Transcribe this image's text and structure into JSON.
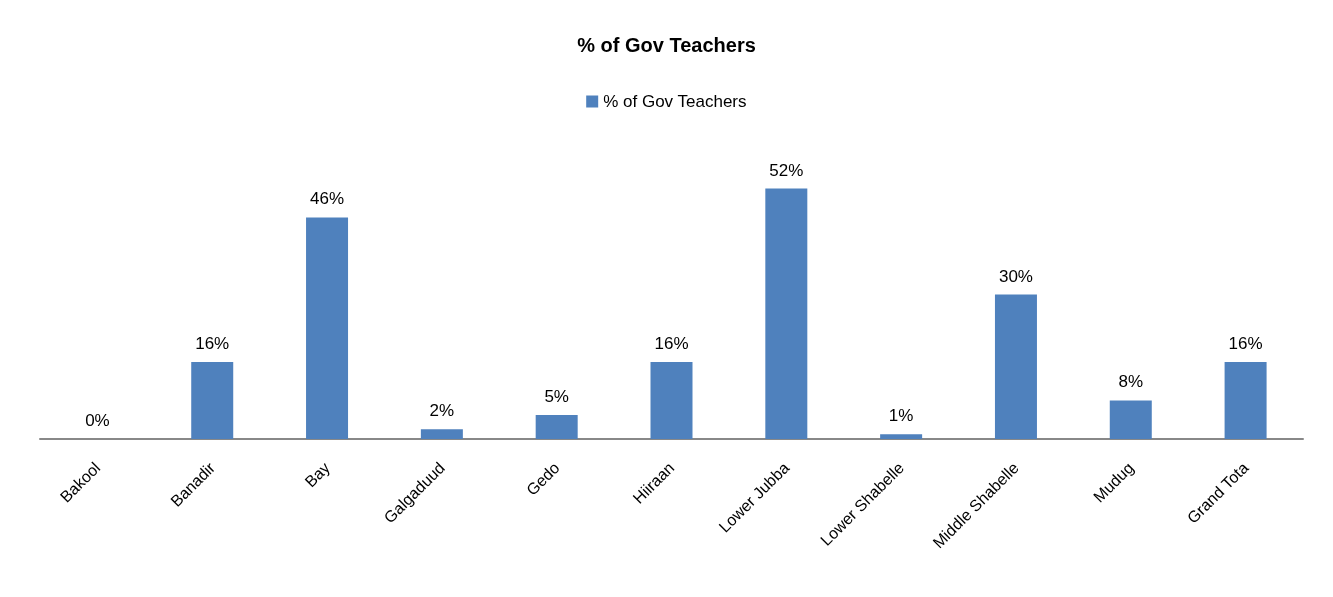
{
  "chart_data": {
    "type": "bar",
    "title": "% of Gov Teachers",
    "categories": [
      "Bakool",
      "Banadir",
      "Bay",
      "Galgaduud",
      "Gedo",
      "Hiiraan",
      "Lower Jubba",
      "Lower Shabelle",
      "Middle Shabelle",
      "Mudug",
      "Grand Tota"
    ],
    "series": [
      {
        "name": "% of Gov Teachers",
        "color": "#4f81bd",
        "values": [
          0,
          16,
          46,
          2,
          5,
          16,
          52,
          1,
          30,
          8,
          16
        ],
        "value_labels": [
          "0%",
          "16%",
          "46%",
          "2%",
          "5%",
          "16%",
          "52%",
          "1%",
          "30%",
          "8%",
          "16%"
        ]
      }
    ],
    "legend": "top"
  }
}
